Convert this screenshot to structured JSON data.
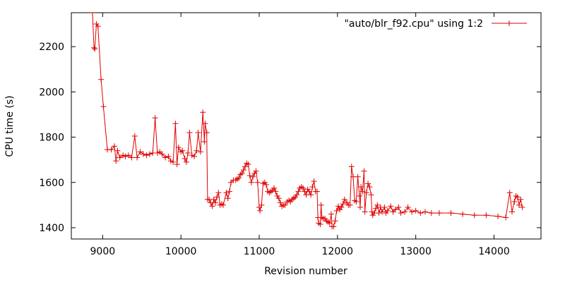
{
  "chart_data": {
    "type": "line",
    "xlabel": "Revision number",
    "ylabel": "CPU time (s)",
    "xlim": [
      8600,
      14600
    ],
    "ylim": [
      1350,
      2350
    ],
    "xticks": [
      9000,
      10000,
      11000,
      12000,
      13000,
      14000
    ],
    "yticks": [
      1400,
      1600,
      1800,
      2000,
      2200
    ],
    "grid": false,
    "legend_position": "top-right",
    "series": [
      {
        "name": "\"auto/blr_f92.cpu\" using 1:2",
        "color": "#e00000",
        "marker": "plus",
        "points": [
          [
            8870,
            2350
          ],
          [
            8890,
            2195
          ],
          [
            8900,
            2190
          ],
          [
            8920,
            2300
          ],
          [
            8940,
            2290
          ],
          [
            8980,
            2055
          ],
          [
            9010,
            1935
          ],
          [
            9060,
            1745
          ],
          [
            9110,
            1745
          ],
          [
            9150,
            1760
          ],
          [
            9170,
            1695
          ],
          [
            9190,
            1740
          ],
          [
            9220,
            1710
          ],
          [
            9260,
            1720
          ],
          [
            9290,
            1715
          ],
          [
            9330,
            1720
          ],
          [
            9370,
            1710
          ],
          [
            9410,
            1805
          ],
          [
            9440,
            1710
          ],
          [
            9480,
            1735
          ],
          [
            9520,
            1725
          ],
          [
            9560,
            1720
          ],
          [
            9600,
            1725
          ],
          [
            9640,
            1730
          ],
          [
            9670,
            1885
          ],
          [
            9700,
            1730
          ],
          [
            9730,
            1735
          ],
          [
            9760,
            1725
          ],
          [
            9800,
            1710
          ],
          [
            9840,
            1715
          ],
          [
            9870,
            1695
          ],
          [
            9900,
            1690
          ],
          [
            9930,
            1860
          ],
          [
            9950,
            1680
          ],
          [
            9970,
            1755
          ],
          [
            10000,
            1735
          ],
          [
            10020,
            1740
          ],
          [
            10050,
            1705
          ],
          [
            10070,
            1690
          ],
          [
            10090,
            1730
          ],
          [
            10110,
            1820
          ],
          [
            10140,
            1720
          ],
          [
            10170,
            1715
          ],
          [
            10200,
            1740
          ],
          [
            10220,
            1820
          ],
          [
            10250,
            1735
          ],
          [
            10280,
            1910
          ],
          [
            10300,
            1780
          ],
          [
            10310,
            1860
          ],
          [
            10330,
            1820
          ],
          [
            10340,
            1525
          ],
          [
            10360,
            1525
          ],
          [
            10380,
            1510
          ],
          [
            10400,
            1495
          ],
          [
            10420,
            1525
          ],
          [
            10440,
            1510
          ],
          [
            10460,
            1535
          ],
          [
            10480,
            1555
          ],
          [
            10500,
            1500
          ],
          [
            10520,
            1505
          ],
          [
            10540,
            1500
          ],
          [
            10580,
            1555
          ],
          [
            10600,
            1530
          ],
          [
            10620,
            1560
          ],
          [
            10640,
            1600
          ],
          [
            10670,
            1610
          ],
          [
            10700,
            1610
          ],
          [
            10720,
            1615
          ],
          [
            10740,
            1620
          ],
          [
            10760,
            1635
          ],
          [
            10780,
            1640
          ],
          [
            10800,
            1655
          ],
          [
            10820,
            1670
          ],
          [
            10840,
            1685
          ],
          [
            10860,
            1680
          ],
          [
            10880,
            1630
          ],
          [
            10900,
            1600
          ],
          [
            10920,
            1625
          ],
          [
            10940,
            1640
          ],
          [
            10960,
            1650
          ],
          [
            10980,
            1600
          ],
          [
            11000,
            1490
          ],
          [
            11010,
            1475
          ],
          [
            11030,
            1500
          ],
          [
            11050,
            1595
          ],
          [
            11070,
            1600
          ],
          [
            11090,
            1590
          ],
          [
            11110,
            1560
          ],
          [
            11130,
            1555
          ],
          [
            11150,
            1560
          ],
          [
            11170,
            1565
          ],
          [
            11190,
            1575
          ],
          [
            11210,
            1560
          ],
          [
            11230,
            1540
          ],
          [
            11250,
            1530
          ],
          [
            11270,
            1510
          ],
          [
            11290,
            1495
          ],
          [
            11310,
            1500
          ],
          [
            11330,
            1500
          ],
          [
            11360,
            1515
          ],
          [
            11380,
            1520
          ],
          [
            11400,
            1515
          ],
          [
            11420,
            1525
          ],
          [
            11440,
            1530
          ],
          [
            11460,
            1535
          ],
          [
            11480,
            1545
          ],
          [
            11500,
            1560
          ],
          [
            11520,
            1575
          ],
          [
            11540,
            1580
          ],
          [
            11560,
            1575
          ],
          [
            11580,
            1560
          ],
          [
            11600,
            1545
          ],
          [
            11620,
            1570
          ],
          [
            11640,
            1560
          ],
          [
            11660,
            1545
          ],
          [
            11680,
            1580
          ],
          [
            11700,
            1605
          ],
          [
            11720,
            1560
          ],
          [
            11740,
            1560
          ],
          [
            11750,
            1445
          ],
          [
            11760,
            1420
          ],
          [
            11780,
            1415
          ],
          [
            11790,
            1500
          ],
          [
            11800,
            1445
          ],
          [
            11820,
            1440
          ],
          [
            11840,
            1440
          ],
          [
            11860,
            1430
          ],
          [
            11880,
            1425
          ],
          [
            11900,
            1420
          ],
          [
            11920,
            1460
          ],
          [
            11930,
            1405
          ],
          [
            11950,
            1405
          ],
          [
            11970,
            1430
          ],
          [
            11990,
            1475
          ],
          [
            12010,
            1495
          ],
          [
            12030,
            1480
          ],
          [
            12050,
            1490
          ],
          [
            12070,
            1505
          ],
          [
            12090,
            1525
          ],
          [
            12120,
            1510
          ],
          [
            12140,
            1500
          ],
          [
            12160,
            1500
          ],
          [
            12180,
            1670
          ],
          [
            12200,
            1625
          ],
          [
            12220,
            1520
          ],
          [
            12240,
            1515
          ],
          [
            12260,
            1625
          ],
          [
            12280,
            1540
          ],
          [
            12290,
            1490
          ],
          [
            12300,
            1580
          ],
          [
            12320,
            1560
          ],
          [
            12340,
            1650
          ],
          [
            12350,
            1470
          ],
          [
            12370,
            1555
          ],
          [
            12390,
            1595
          ],
          [
            12410,
            1580
          ],
          [
            12430,
            1545
          ],
          [
            12440,
            1470
          ],
          [
            12450,
            1455
          ],
          [
            12470,
            1465
          ],
          [
            12490,
            1485
          ],
          [
            12510,
            1500
          ],
          [
            12530,
            1465
          ],
          [
            12550,
            1490
          ],
          [
            12570,
            1470
          ],
          [
            12600,
            1490
          ],
          [
            12620,
            1465
          ],
          [
            12640,
            1475
          ],
          [
            12680,
            1495
          ],
          [
            12710,
            1470
          ],
          [
            12740,
            1480
          ],
          [
            12780,
            1490
          ],
          [
            12810,
            1465
          ],
          [
            12860,
            1470
          ],
          [
            12900,
            1490
          ],
          [
            12950,
            1470
          ],
          [
            13000,
            1475
          ],
          [
            13060,
            1465
          ],
          [
            13120,
            1470
          ],
          [
            13200,
            1465
          ],
          [
            13300,
            1465
          ],
          [
            13450,
            1465
          ],
          [
            13600,
            1460
          ],
          [
            13750,
            1455
          ],
          [
            13900,
            1455
          ],
          [
            14050,
            1450
          ],
          [
            14150,
            1445
          ],
          [
            14200,
            1555
          ],
          [
            14230,
            1470
          ],
          [
            14260,
            1515
          ],
          [
            14280,
            1540
          ],
          [
            14300,
            1535
          ],
          [
            14320,
            1500
          ],
          [
            14340,
            1525
          ],
          [
            14360,
            1490
          ]
        ]
      }
    ]
  }
}
